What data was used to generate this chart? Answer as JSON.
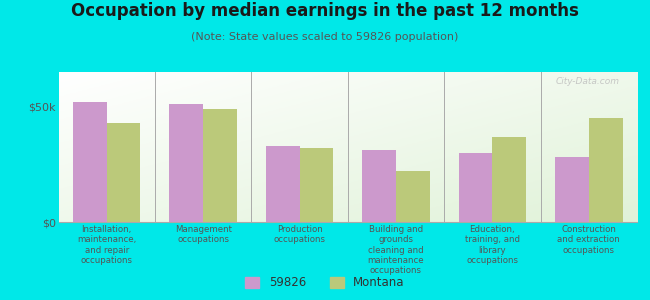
{
  "title": "Occupation by median earnings in the past 12 months",
  "subtitle": "(Note: State values scaled to 59826 population)",
  "categories": [
    "Installation,\nmaintenance,\nand repair\noccupations",
    "Management\noccupations",
    "Production\noccupations",
    "Building and\ngrounds\ncleaning and\nmaintenance\noccupations",
    "Education,\ntraining, and\nlibrary\noccupations",
    "Construction\nand extraction\noccupations"
  ],
  "values_local": [
    52000,
    51000,
    33000,
    31000,
    30000,
    28000
  ],
  "values_state": [
    43000,
    49000,
    32000,
    22000,
    37000,
    45000
  ],
  "color_local": "#cc99cc",
  "color_state": "#bbc97a",
  "legend_local": "59826",
  "legend_state": "Montana",
  "yticks": [
    0,
    50000
  ],
  "ytick_labels": [
    "$0",
    "$50k"
  ],
  "ylim": [
    0,
    65000
  ],
  "outer_background": "#00e8e8",
  "watermark": "City-Data.com",
  "bar_width": 0.35,
  "title_fontsize": 12,
  "subtitle_fontsize": 8
}
